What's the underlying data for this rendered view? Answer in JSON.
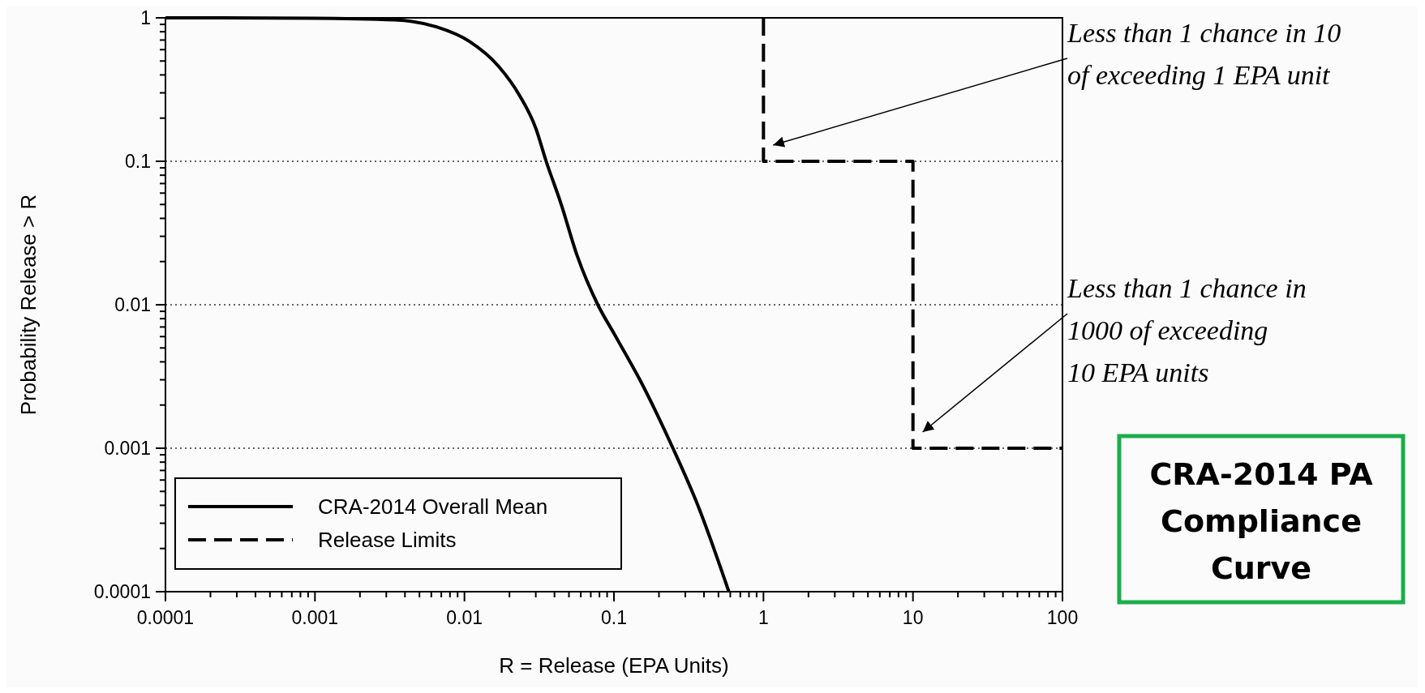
{
  "chart_data": {
    "type": "line",
    "title": "CRA-2014 PA Compliance Curve",
    "xlabel": "R = Release (EPA Units)",
    "ylabel": "Probability Release > R",
    "log": "xy",
    "grid": "y",
    "legend": "bottom left",
    "marker": "none",
    "xlim": [
      0.0001,
      100
    ],
    "ylim": [
      0.0001,
      1
    ],
    "xticks": [
      0.0001,
      {
        "value": 0.0002,
        "label": null
      },
      {
        "value": 0.0003,
        "label": null
      },
      {
        "value": 0.0004,
        "label": null
      },
      {
        "value": 0.0005,
        "label": null
      },
      {
        "value": 0.0006,
        "label": null
      },
      {
        "value": 0.0007,
        "label": null
      },
      {
        "value": 0.0008,
        "label": null
      },
      {
        "value": 0.0009,
        "label": null
      },
      0.001,
      {
        "value": 0.002,
        "label": null
      },
      {
        "value": 0.003,
        "label": null
      },
      {
        "value": 0.004,
        "label": null
      },
      {
        "value": 0.005,
        "label": null
      },
      {
        "value": 0.006,
        "label": null
      },
      {
        "value": 0.007,
        "label": null
      },
      {
        "value": 0.008,
        "label": null
      },
      {
        "value": 0.009,
        "label": null
      },
      0.01,
      {
        "value": 0.02,
        "label": null
      },
      {
        "value": 0.03,
        "label": null
      },
      {
        "value": 0.04,
        "label": null
      },
      {
        "value": 0.05,
        "label": null
      },
      {
        "value": 0.06,
        "label": null
      },
      {
        "value": 0.07,
        "label": null
      },
      {
        "value": 0.08,
        "label": null
      },
      {
        "value": 0.09,
        "label": null
      },
      0.1,
      {
        "value": 0.2,
        "label": null
      },
      {
        "value": 0.3,
        "label": null
      },
      {
        "value": 0.4,
        "label": null
      },
      {
        "value": 0.5,
        "label": null
      },
      {
        "value": 0.6,
        "label": null
      },
      {
        "value": 0.7,
        "label": null
      },
      {
        "value": 0.8,
        "label": null
      },
      {
        "value": 0.9,
        "label": null
      },
      1,
      {
        "value": 2,
        "label": null
      },
      {
        "value": 3,
        "label": null
      },
      {
        "value": 4,
        "label": null
      },
      {
        "value": 5,
        "label": null
      },
      {
        "value": 6,
        "label": null
      },
      {
        "value": 7,
        "label": null
      },
      {
        "value": 8,
        "label": null
      },
      {
        "value": 9,
        "label": null
      },
      10,
      {
        "value": 20,
        "label": null
      },
      {
        "value": 30,
        "label": null
      },
      {
        "value": 40,
        "label": null
      },
      {
        "value": 50,
        "label": null
      },
      {
        "value": 60,
        "label": null
      },
      {
        "value": 70,
        "label": null
      },
      {
        "value": 80,
        "label": null
      },
      {
        "value": 90,
        "label": null
      },
      100
    ],
    "yticks": [
      0.0001,
      {
        "value": 0.0002,
        "label": null
      },
      {
        "value": 0.0003,
        "label": null
      },
      {
        "value": 0.0004,
        "label": null
      },
      {
        "value": 0.0005,
        "label": null
      },
      {
        "value": 0.0006,
        "label": null
      },
      {
        "value": 0.0007,
        "label": null
      },
      {
        "value": 0.0008,
        "label": null
      },
      {
        "value": 0.0009,
        "label": null
      },
      0.001,
      {
        "value": 0.002,
        "label": null
      },
      {
        "value": 0.003,
        "label": null
      },
      {
        "value": 0.004,
        "label": null
      },
      {
        "value": 0.005,
        "label": null
      },
      {
        "value": 0.006,
        "label": null
      },
      {
        "value": 0.007,
        "label": null
      },
      {
        "value": 0.008,
        "label": null
      },
      {
        "value": 0.009,
        "label": null
      },
      0.01,
      {
        "value": 0.02,
        "label": null
      },
      {
        "value": 0.03,
        "label": null
      },
      {
        "value": 0.04,
        "label": null
      },
      {
        "value": 0.05,
        "label": null
      },
      {
        "value": 0.06,
        "label": null
      },
      {
        "value": 0.07,
        "label": null
      },
      {
        "value": 0.08,
        "label": null
      },
      {
        "value": 0.09,
        "label": null
      },
      0.1,
      {
        "value": 0.2,
        "label": null
      },
      {
        "value": 0.3,
        "label": null
      },
      {
        "value": 0.4,
        "label": null
      },
      {
        "value": 0.5,
        "label": null
      },
      {
        "value": 0.6,
        "label": null
      },
      {
        "value": 0.7,
        "label": null
      },
      {
        "value": 0.8,
        "label": null
      },
      {
        "value": 0.9,
        "label": null
      },
      1
    ],
    "series": [
      {
        "name": "CRA-2014 Overall Mean",
        "color": "#000000",
        "line_style": "solid",
        "x": [
          0.0001,
          0.00095,
          0.0034,
          0.0065,
          0.0108,
          0.0169,
          0.0233,
          0.03,
          0.0352,
          0.044,
          0.057,
          0.078,
          0.101,
          0.149,
          0.248,
          0.364,
          0.587
        ],
        "values": [
          1,
          0.993,
          0.967,
          0.865,
          0.685,
          0.46,
          0.289,
          0.17,
          0.1,
          0.0515,
          0.0217,
          0.01,
          0.0062,
          0.003,
          0.001,
          0.0004,
          0.0001
        ]
      },
      {
        "name": "Release Limits",
        "color": "#000000",
        "line_style": "dashed",
        "x": [
          1,
          1,
          10,
          10,
          100
        ],
        "values": [
          1,
          0.1,
          0.1,
          0.001,
          0.001
        ]
      }
    ],
    "annotations": [
      "Less than 1 chance in 10\nof exceeding 1 EPA unit",
      "Less than 1 chance in\n1000 of exceeding\n10 EPA units"
    ]
  }
}
